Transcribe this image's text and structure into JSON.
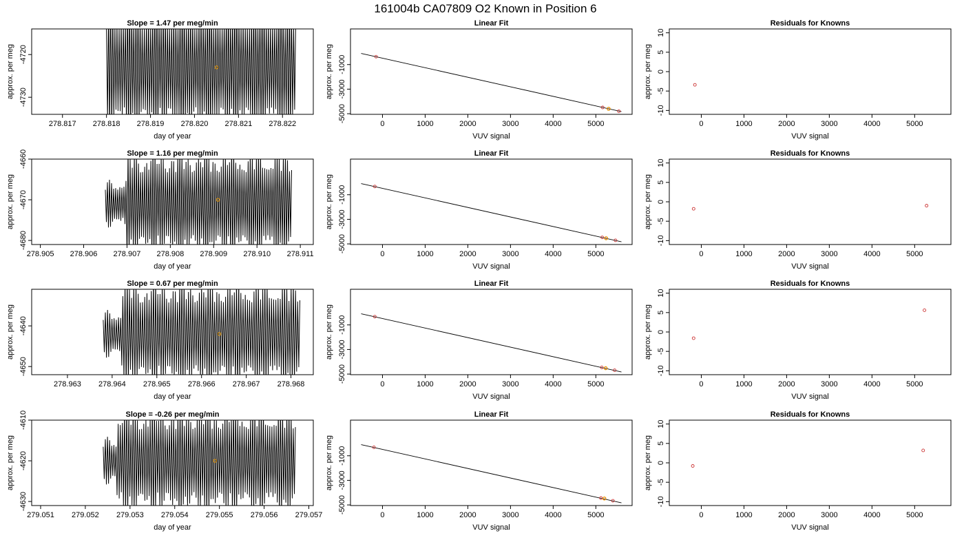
{
  "suptitle": "161004b     CA07809   O2 Known in Position  6",
  "colors": {
    "trace": "#000000",
    "known_point": "#cc3333",
    "fit_point": "#e69500",
    "line": "#000000",
    "frame": "#000000"
  },
  "chart_data": [
    {
      "row": 1,
      "time_series": {
        "type": "line",
        "title": "Slope =  1.47  per meg/min",
        "xlabel": "day of year",
        "ylabel": "approx. per meg",
        "xlim": [
          278.8163,
          278.8227
        ],
        "ylim": [
          -4734,
          -4714
        ],
        "xticks": [
          "278.817",
          "278.818",
          "278.819",
          "278.820",
          "278.821",
          "278.822"
        ],
        "xtick_values": [
          278.817,
          278.818,
          278.819,
          278.82,
          278.821,
          278.822
        ],
        "yticks": [
          "-4730",
          "-4720"
        ],
        "ytick_values": [
          -4730,
          -4720
        ],
        "trace": {
          "x_start": 278.818,
          "x_end": 278.8223,
          "center": -4723,
          "amplitude": 17,
          "cycles": 90,
          "onset": 278.818
        },
        "marker": {
          "x": 278.8205,
          "y": -4723
        }
      },
      "linear_fit": {
        "type": "scatter",
        "title": "Linear Fit",
        "xlabel": "VUV signal",
        "ylabel": "approx. per meg",
        "xlim": [
          -750,
          5850
        ],
        "ylim": [
          -5050,
          1900
        ],
        "xticks": [
          "0",
          "1000",
          "2000",
          "3000",
          "4000",
          "5000"
        ],
        "xtick_values": [
          0,
          1000,
          2000,
          3000,
          4000,
          5000
        ],
        "yticks": [
          "-5000",
          "-3000",
          "-1000"
        ],
        "ytick_values": [
          -5000,
          -3000,
          -1000
        ],
        "line": {
          "x": [
            -500,
            5600
          ],
          "y": [
            -90,
            -4830
          ]
        },
        "known_points": {
          "x": [
            -150,
            5160,
            5300,
            5540
          ],
          "y": [
            -360,
            -4490,
            -4600,
            -4800
          ]
        },
        "fit_points": {
          "x": [
            5300
          ],
          "y": [
            -4600
          ]
        }
      },
      "residuals": {
        "type": "scatter",
        "title": "Residuals for Knowns",
        "xlabel": "VUV signal",
        "ylabel": "approx. per meg",
        "xlim": [
          -750,
          5850
        ],
        "ylim": [
          -11,
          11
        ],
        "xticks": [
          "0",
          "1000",
          "2000",
          "3000",
          "4000",
          "5000"
        ],
        "xtick_values": [
          0,
          1000,
          2000,
          3000,
          4000,
          5000
        ],
        "yticks": [
          "-10",
          "-5",
          "0",
          "5",
          "10"
        ],
        "ytick_values": [
          -10,
          -5,
          0,
          5,
          10
        ],
        "points": {
          "x": [
            -150
          ],
          "y": [
            -3.4
          ]
        }
      }
    },
    {
      "row": 2,
      "time_series": {
        "type": "line",
        "title": "Slope =  1.16  per meg/min",
        "xlabel": "day of year",
        "ylabel": "approx. per meg",
        "xlim": [
          278.9048,
          278.9113
        ],
        "ylim": [
          -4681,
          -4660
        ],
        "xticks": [
          "278.905",
          "278.906",
          "278.907",
          "278.908",
          "278.909",
          "278.910",
          "278.911"
        ],
        "xtick_values": [
          278.905,
          278.906,
          278.907,
          278.908,
          278.909,
          278.91,
          278.911
        ],
        "yticks": [
          "-4680",
          "-4670",
          "-4660"
        ],
        "ytick_values": [
          -4680,
          -4670,
          -4660
        ],
        "trace": {
          "x_start": 278.9065,
          "x_end": 278.9108,
          "center": -4671,
          "amplitude": 14,
          "cycles": 90,
          "onset": 278.907
        },
        "marker": {
          "x": 278.9091,
          "y": -4670
        }
      },
      "linear_fit": {
        "type": "scatter",
        "title": "Linear Fit",
        "xlabel": "VUV signal",
        "ylabel": "approx. per meg",
        "xlim": [
          -750,
          5850
        ],
        "ylim": [
          -5050,
          1900
        ],
        "xticks": [
          "0",
          "1000",
          "2000",
          "3000",
          "4000",
          "5000"
        ],
        "xtick_values": [
          0,
          1000,
          2000,
          3000,
          4000,
          5000
        ],
        "yticks": [
          "-5000",
          "-3000",
          "-1000"
        ],
        "ytick_values": [
          -5000,
          -3000,
          -1000
        ],
        "line": {
          "x": [
            -500,
            5600
          ],
          "y": [
            -90,
            -4830
          ]
        },
        "known_points": {
          "x": [
            -180,
            5150,
            5240,
            5460
          ],
          "y": [
            -330,
            -4470,
            -4540,
            -4710
          ]
        },
        "fit_points": {
          "x": [
            5240
          ],
          "y": [
            -4540
          ]
        }
      },
      "residuals": {
        "type": "scatter",
        "title": "Residuals for Knowns",
        "xlabel": "VUV signal",
        "ylabel": "approx. per meg",
        "xlim": [
          -750,
          5850
        ],
        "ylim": [
          -11,
          11
        ],
        "xticks": [
          "0",
          "1000",
          "2000",
          "3000",
          "4000",
          "5000"
        ],
        "xtick_values": [
          0,
          1000,
          2000,
          3000,
          4000,
          5000
        ],
        "yticks": [
          "-10",
          "-5",
          "0",
          "5",
          "10"
        ],
        "ytick_values": [
          -10,
          -5,
          0,
          5,
          10
        ],
        "points": {
          "x": [
            -180,
            5280
          ],
          "y": [
            -1.8,
            -1.0
          ]
        }
      }
    },
    {
      "row": 3,
      "time_series": {
        "type": "line",
        "title": "Slope =  0.67  per meg/min",
        "xlabel": "day of year",
        "ylabel": "approx. per meg",
        "xlim": [
          278.9622,
          278.9685
        ],
        "ylim": [
          -4652,
          -4631
        ],
        "xticks": [
          "278.963",
          "278.964",
          "278.965",
          "278.966",
          "278.967",
          "278.968"
        ],
        "xtick_values": [
          278.963,
          278.964,
          278.965,
          278.966,
          278.967,
          278.968
        ],
        "yticks": [
          "-4650",
          "-4640"
        ],
        "ytick_values": [
          -4650,
          -4640
        ],
        "trace": {
          "x_start": 278.9638,
          "x_end": 278.9682,
          "center": -4642,
          "amplitude": 14,
          "cycles": 90,
          "onset": 278.9642
        },
        "marker": {
          "x": 278.9664,
          "y": -4642
        }
      },
      "linear_fit": {
        "type": "scatter",
        "title": "Linear Fit",
        "xlabel": "VUV signal",
        "ylabel": "approx. per meg",
        "xlim": [
          -750,
          5850
        ],
        "ylim": [
          -5050,
          1900
        ],
        "xticks": [
          "0",
          "1000",
          "2000",
          "3000",
          "4000",
          "5000"
        ],
        "xtick_values": [
          0,
          1000,
          2000,
          3000,
          4000,
          5000
        ],
        "yticks": [
          "-5000",
          "-3000",
          "-1000"
        ],
        "ytick_values": [
          -5000,
          -3000,
          -1000
        ],
        "line": {
          "x": [
            -500,
            5600
          ],
          "y": [
            -90,
            -4830
          ]
        },
        "known_points": {
          "x": [
            -180,
            5140,
            5230,
            5440
          ],
          "y": [
            -330,
            -4460,
            -4520,
            -4690
          ]
        },
        "fit_points": {
          "x": [
            5230
          ],
          "y": [
            -4520
          ]
        }
      },
      "residuals": {
        "type": "scatter",
        "title": "Residuals for Knowns",
        "xlabel": "VUV signal",
        "ylabel": "approx. per meg",
        "xlim": [
          -750,
          5850
        ],
        "ylim": [
          -11,
          11
        ],
        "xticks": [
          "0",
          "1000",
          "2000",
          "3000",
          "4000",
          "5000"
        ],
        "xtick_values": [
          0,
          1000,
          2000,
          3000,
          4000,
          5000
        ],
        "yticks": [
          "-10",
          "-5",
          "0",
          "5",
          "10"
        ],
        "ytick_values": [
          -10,
          -5,
          0,
          5,
          10
        ],
        "points": {
          "x": [
            -180,
            5230
          ],
          "y": [
            -1.6,
            5.6
          ]
        }
      }
    },
    {
      "row": 4,
      "time_series": {
        "type": "line",
        "title": "Slope =  -0.26  per meg/min",
        "xlabel": "day of year",
        "ylabel": "approx. per meg",
        "xlim": [
          279.0508,
          279.0571
        ],
        "ylim": [
          -4631,
          -4610
        ],
        "xticks": [
          "279.051",
          "279.052",
          "279.053",
          "279.054",
          "279.055",
          "279.056",
          "279.057"
        ],
        "xtick_values": [
          279.051,
          279.052,
          279.053,
          279.054,
          279.055,
          279.056,
          279.057
        ],
        "yticks": [
          "-4630",
          "-4620",
          "-4610"
        ],
        "ytick_values": [
          -4630,
          -4620,
          -4610
        ],
        "trace": {
          "x_start": 279.0524,
          "x_end": 279.0567,
          "center": -4620,
          "amplitude": 14,
          "cycles": 90,
          "onset": 279.0527
        },
        "marker": {
          "x": 279.0549,
          "y": -4620
        }
      },
      "linear_fit": {
        "type": "scatter",
        "title": "Linear Fit",
        "xlabel": "VUV signal",
        "ylabel": "approx. per meg",
        "xlim": [
          -750,
          5850
        ],
        "ylim": [
          -5050,
          1900
        ],
        "xticks": [
          "0",
          "1000",
          "2000",
          "3000",
          "4000",
          "5000"
        ],
        "xtick_values": [
          0,
          1000,
          2000,
          3000,
          4000,
          5000
        ],
        "yticks": [
          "-5000",
          "-3000",
          "-1000"
        ],
        "ytick_values": [
          -5000,
          -3000,
          -1000
        ],
        "line": {
          "x": [
            -500,
            5600
          ],
          "y": [
            -90,
            -4830
          ]
        },
        "known_points": {
          "x": [
            -200,
            5120,
            5200,
            5400
          ],
          "y": [
            -310,
            -4440,
            -4480,
            -4660
          ]
        },
        "fit_points": {
          "x": [
            5200
          ],
          "y": [
            -4480
          ]
        }
      },
      "residuals": {
        "type": "scatter",
        "title": "Residuals for Knowns",
        "xlabel": "VUV signal",
        "ylabel": "approx. per meg",
        "xlim": [
          -750,
          5850
        ],
        "ylim": [
          -11,
          11
        ],
        "xticks": [
          "0",
          "1000",
          "2000",
          "3000",
          "4000",
          "5000"
        ],
        "xtick_values": [
          0,
          1000,
          2000,
          3000,
          4000,
          5000
        ],
        "yticks": [
          "-10",
          "-5",
          "0",
          "5",
          "10"
        ],
        "ytick_values": [
          -10,
          -5,
          0,
          5,
          10
        ],
        "points": {
          "x": [
            -200,
            5200
          ],
          "y": [
            -0.8,
            3.2
          ]
        }
      }
    }
  ]
}
